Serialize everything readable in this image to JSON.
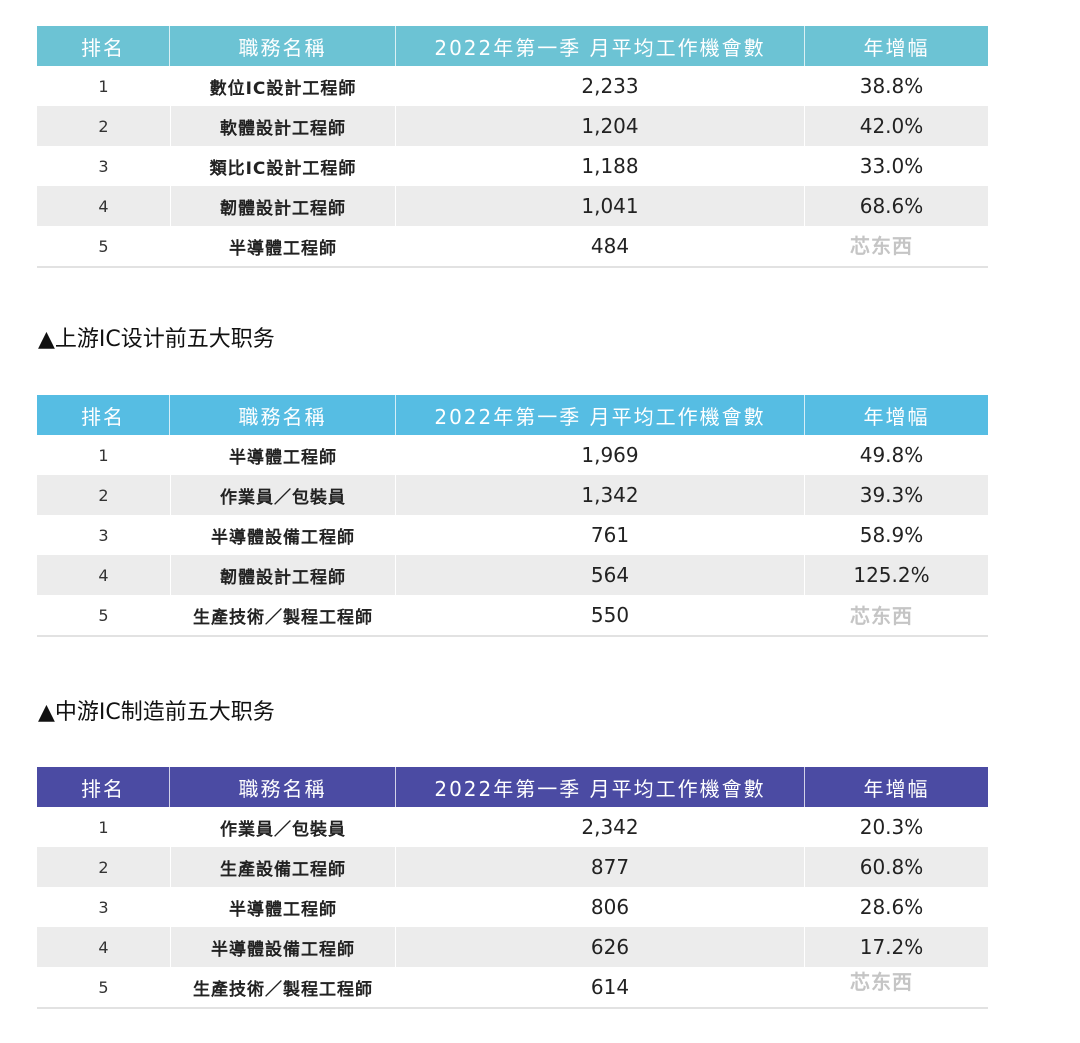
{
  "columns": [
    "排名",
    "職務名稱",
    "2022年第一季 月平均工作機會數",
    "年增幅"
  ],
  "tables": [
    {
      "header_color": "#6cc3d4",
      "rows": [
        {
          "rank": "1",
          "job": "數位IC設計工程師",
          "openings": "2,233",
          "growth": "38.8%"
        },
        {
          "rank": "2",
          "job": "軟體設計工程師",
          "openings": "1,204",
          "growth": "42.0%"
        },
        {
          "rank": "3",
          "job": "類比IC設計工程師",
          "openings": "1,188",
          "growth": "33.0%"
        },
        {
          "rank": "4",
          "job": "韌體設計工程師",
          "openings": "1,041",
          "growth": "68.6%"
        },
        {
          "rank": "5",
          "job": "半導體工程師",
          "openings": "484",
          "growth": ""
        }
      ]
    },
    {
      "header_color": "#56bde3",
      "rows": [
        {
          "rank": "1",
          "job": "半導體工程師",
          "openings": "1,969",
          "growth": "49.8%"
        },
        {
          "rank": "2",
          "job": "作業員／包裝員",
          "openings": "1,342",
          "growth": "39.3%"
        },
        {
          "rank": "3",
          "job": "半導體設備工程師",
          "openings": "761",
          "growth": "58.9%"
        },
        {
          "rank": "4",
          "job": "韌體設計工程師",
          "openings": "564",
          "growth": "125.2%"
        },
        {
          "rank": "5",
          "job": "生產技術／製程工程師",
          "openings": "550",
          "growth": ""
        }
      ]
    },
    {
      "header_color": "#4b4ba3",
      "rows": [
        {
          "rank": "1",
          "job": "作業員／包裝員",
          "openings": "2,342",
          "growth": "20.3%"
        },
        {
          "rank": "2",
          "job": "生產設備工程師",
          "openings": "877",
          "growth": "60.8%"
        },
        {
          "rank": "3",
          "job": "半導體工程師",
          "openings": "806",
          "growth": "28.6%"
        },
        {
          "rank": "4",
          "job": "半導體設備工程師",
          "openings": "626",
          "growth": "17.2%"
        },
        {
          "rank": "5",
          "job": "生產技術／製程工程師",
          "openings": "614",
          "growth": ""
        }
      ]
    }
  ],
  "captions": [
    "▲上游IC设计前五大职务",
    "▲中游IC制造前五大职务"
  ],
  "watermark": "芯东西"
}
